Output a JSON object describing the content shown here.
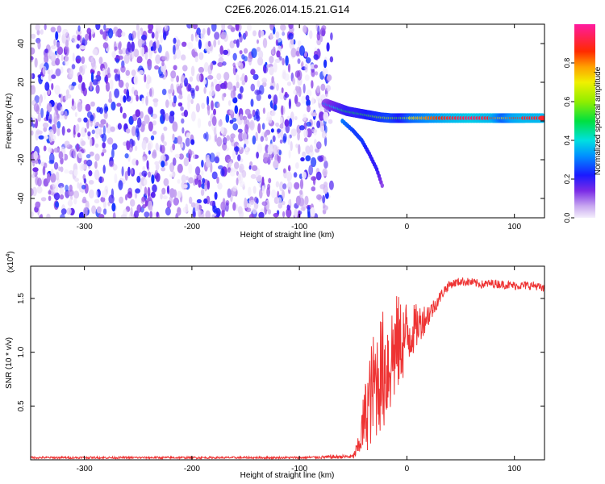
{
  "title": "C2E6.2026.014.15.21.G14",
  "chart_data": [
    {
      "type": "heatmap",
      "xlabel": "Height of straight line (km)",
      "ylabel": "Frequency (Hz)",
      "xlim": [
        -350,
        128
      ],
      "ylim": [
        -50,
        50
      ],
      "xticks": [
        -300,
        -200,
        -100,
        0,
        100
      ],
      "yticks": [
        -40,
        -20,
        0,
        20,
        40
      ],
      "xtick_labels": [
        "-300",
        "-200",
        "-100",
        "0",
        "100"
      ],
      "ytick_labels": [
        "-40",
        "-20",
        "0",
        "20",
        "40"
      ],
      "colorbar": {
        "label": "Normalized spectral amplitude",
        "range": [
          0,
          1
        ],
        "ticks": [
          0,
          0.2,
          0.4,
          0.6,
          0.8
        ],
        "tick_labels": [
          "0.0",
          "0.2",
          "0.4",
          "0.6",
          "0.8"
        ],
        "colormap": "rainbow"
      },
      "noise_region": {
        "x": [
          -350,
          -70
        ],
        "y": [
          -50,
          50
        ],
        "amplitude": [
          0.0,
          0.25
        ]
      },
      "main_tone": {
        "x": [
          -75,
          -65,
          -55,
          -45,
          -35,
          -25,
          -15,
          -5,
          5,
          20,
          40,
          60,
          80,
          90,
          100,
          110,
          128
        ],
        "y": [
          9,
          7,
          5,
          4,
          3,
          2,
          1.5,
          1.5,
          1.5,
          1.5,
          1.5,
          1.5,
          1.5,
          1.5,
          1.5,
          1.5,
          1.5
        ],
        "amplitude": [
          0.3,
          0.4,
          0.5,
          0.5,
          0.55,
          0.6,
          0.65,
          0.55,
          0.7,
          0.8,
          0.9,
          0.95,
          0.9,
          0.7,
          0.85,
          0.9,
          0.9
        ]
      },
      "secondary_tone": {
        "x": [
          -60,
          -50,
          -42,
          -35,
          -28,
          -22
        ],
        "y": [
          0,
          -5,
          -10,
          -17,
          -25,
          -35
        ],
        "amplitude": [
          0.3,
          0.25,
          0.25,
          0.2,
          0.2,
          0.1
        ]
      }
    },
    {
      "type": "line",
      "xlabel": "Height of straight line (km)",
      "ylabel": "SNR (10 * v/v)",
      "y_multiplier_label": "(x10",
      "y_multiplier_exp": "4",
      "y_multiplier_close": ")",
      "xlim": [
        -350,
        128
      ],
      "ylim": [
        0,
        1.8
      ],
      "xticks": [
        -300,
        -200,
        -100,
        0,
        100
      ],
      "yticks": [
        0.5,
        1.0,
        1.5
      ],
      "xtick_labels": [
        "-300",
        "-200",
        "-100",
        "0",
        "100"
      ],
      "ytick_labels": [
        "0.5",
        "1.0",
        "1.5"
      ],
      "color": "#ee3333",
      "series": [
        {
          "x": [
            -350,
            -300,
            -200,
            -100,
            -50,
            -45,
            -40,
            -35,
            -30,
            -25,
            -20,
            -15,
            -10,
            -5,
            0,
            5,
            10,
            15,
            20,
            25,
            30,
            35,
            40,
            50,
            60,
            70,
            80,
            90,
            100,
            110,
            120,
            128
          ],
          "y": [
            0.02,
            0.02,
            0.02,
            0.02,
            0.03,
            0.12,
            0.35,
            0.55,
            0.7,
            0.8,
            0.85,
            0.95,
            1.05,
            1.1,
            1.15,
            1.2,
            1.25,
            1.3,
            1.35,
            1.42,
            1.5,
            1.58,
            1.63,
            1.66,
            1.65,
            1.63,
            1.64,
            1.63,
            1.62,
            1.62,
            1.62,
            1.58
          ],
          "spread": [
            0.01,
            0.01,
            0.01,
            0.01,
            0.02,
            0.1,
            0.3,
            0.45,
            0.55,
            0.55,
            0.6,
            0.55,
            0.5,
            0.4,
            0.35,
            0.25,
            0.2,
            0.15,
            0.12,
            0.08,
            0.06,
            0.05,
            0.04,
            0.04,
            0.04,
            0.04,
            0.04,
            0.04,
            0.04,
            0.04,
            0.04,
            0.04
          ]
        }
      ]
    }
  ]
}
